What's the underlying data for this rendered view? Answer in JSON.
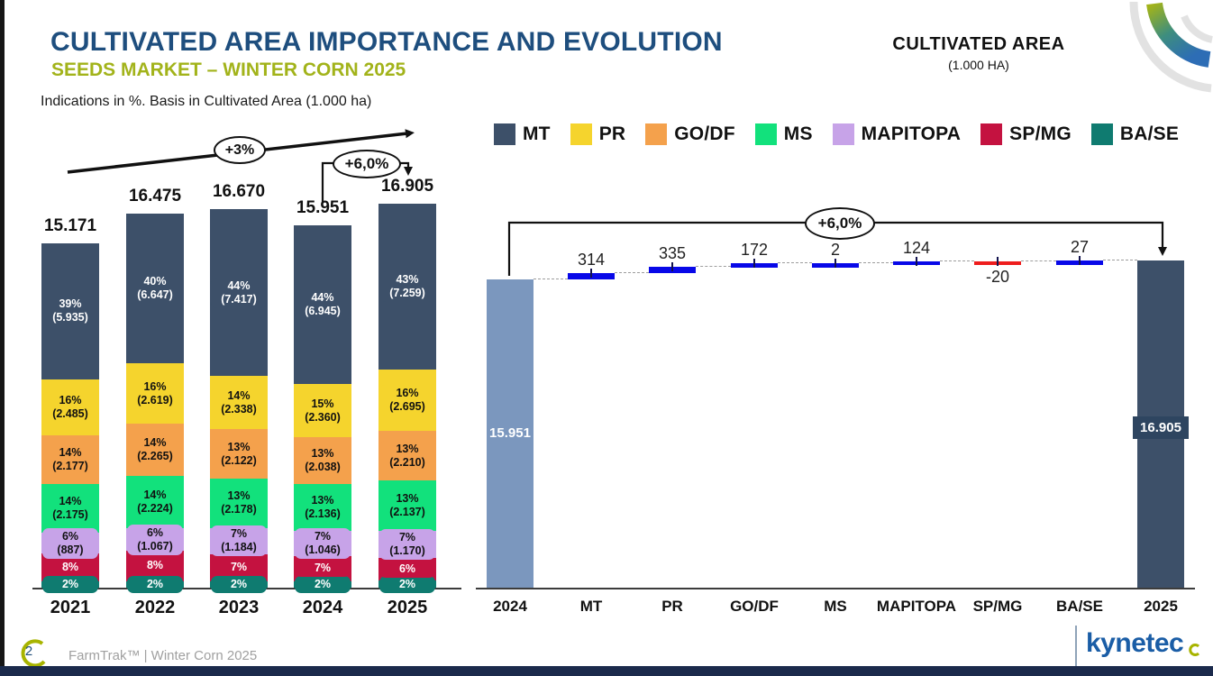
{
  "slide": {
    "title": "CULTIVATED AREA IMPORTANCE AND EVOLUTION",
    "subtitle": "SEEDS MARKET – WINTER CORN 2025",
    "note": "Indications in %. Basis in Cultivated Area (1.000 ha)",
    "right_header_title": "CULTIVATED AREA",
    "right_header_unit": "(1.000 HA)",
    "footer_page": "2",
    "footer_label": "FarmTrak™ | Winter Corn 2025",
    "brand": "kynetec"
  },
  "colors": {
    "title_blue": "#1E4E7E",
    "subtitle_olive": "#A2B31A",
    "bottom_bar_navy": "#1B2A4C",
    "brand_blue": "#1A5DA6",
    "accent_green": "#A8B400"
  },
  "legend": [
    {
      "label": "MT",
      "color": "#3D5069"
    },
    {
      "label": "PR",
      "color": "#F5D42D"
    },
    {
      "label": "GO/DF",
      "color": "#F4A14C"
    },
    {
      "label": "MS",
      "color": "#12E17C"
    },
    {
      "label": "MAPITOPA",
      "color": "#C7A3E8"
    },
    {
      "label": "SP/MG",
      "color": "#C41240"
    },
    {
      "label": "BA/SE",
      "color": "#0F7B70"
    }
  ],
  "chart_data": [
    {
      "type": "bar",
      "stacked": true,
      "unit": "1.000 ha",
      "categories": [
        "2021",
        "2022",
        "2023",
        "2024",
        "2025"
      ],
      "totals": [
        15171,
        16475,
        16670,
        15951,
        16905
      ],
      "total_labels": [
        "15.171",
        "16.475",
        "16.670",
        "15.951",
        "16.905"
      ],
      "series": [
        {
          "name": "BA/SE",
          "color": "#0F7B70",
          "text_color": "#ffffff",
          "pct": [
            2,
            2,
            2,
            2,
            2
          ],
          "value_labels": [
            null,
            null,
            null,
            null,
            null
          ]
        },
        {
          "name": "SP/MG",
          "color": "#C41240",
          "text_color": "#ffffff",
          "pct": [
            8,
            8,
            7,
            7,
            6
          ],
          "value_labels": [
            null,
            null,
            null,
            null,
            null
          ]
        },
        {
          "name": "MAPITOPA",
          "color": "#C7A3E8",
          "text_color": "#111111",
          "pct": [
            6,
            6,
            7,
            7,
            7
          ],
          "value_labels": [
            "(887)",
            "(1.067)",
            "(1.184)",
            "(1.046)",
            "(1.170)"
          ]
        },
        {
          "name": "MS",
          "color": "#12E17C",
          "text_color": "#111111",
          "pct": [
            14,
            14,
            13,
            13,
            13
          ],
          "value_labels": [
            "(2.175)",
            "(2.224)",
            "(2.178)",
            "(2.136)",
            "(2.137)"
          ]
        },
        {
          "name": "GO/DF",
          "color": "#F4A14C",
          "text_color": "#111111",
          "pct": [
            14,
            14,
            13,
            13,
            13
          ],
          "value_labels": [
            "(2.177)",
            "(2.265)",
            "(2.122)",
            "(2.038)",
            "(2.210)"
          ]
        },
        {
          "name": "PR",
          "color": "#F5D42D",
          "text_color": "#111111",
          "pct": [
            16,
            16,
            14,
            15,
            16
          ],
          "value_labels": [
            "(2.485)",
            "(2.619)",
            "(2.338)",
            "(2.360)",
            "(2.695)"
          ]
        },
        {
          "name": "MT",
          "color": "#3D5069",
          "text_color": "#ffffff",
          "pct": [
            39,
            40,
            44,
            44,
            43
          ],
          "value_labels": [
            "(5.935)",
            "(6.647)",
            "(7.417)",
            "(6.945)",
            "(7.259)"
          ]
        }
      ],
      "annotations": [
        {
          "label": "+3%"
        },
        {
          "label": "+6,0%"
        }
      ]
    },
    {
      "type": "waterfall",
      "categories": [
        "2024",
        "MT",
        "PR",
        "GO/DF",
        "MS",
        "MAPITOPA",
        "SP/MG",
        "BA/SE",
        "2025"
      ],
      "start": {
        "value": 15951,
        "label": "15.951",
        "color": "#7B97BE"
      },
      "end": {
        "value": 16905,
        "label": "16.905",
        "color": "#3D5069"
      },
      "steps": [
        {
          "name": "MT",
          "delta": 314,
          "label": "314"
        },
        {
          "name": "PR",
          "delta": 335,
          "label": "335"
        },
        {
          "name": "GO/DF",
          "delta": 172,
          "label": "172"
        },
        {
          "name": "MS",
          "delta": 2,
          "label": "2"
        },
        {
          "name": "MAPITOPA",
          "delta": 124,
          "label": "124"
        },
        {
          "name": "SP/MG",
          "delta": -20,
          "label": "-20"
        },
        {
          "name": "BA/SE",
          "delta": 27,
          "label": "27"
        }
      ],
      "positive_color": "#0808E8",
      "negative_color": "#EE1D1D",
      "annotation": "+6,0%"
    }
  ]
}
